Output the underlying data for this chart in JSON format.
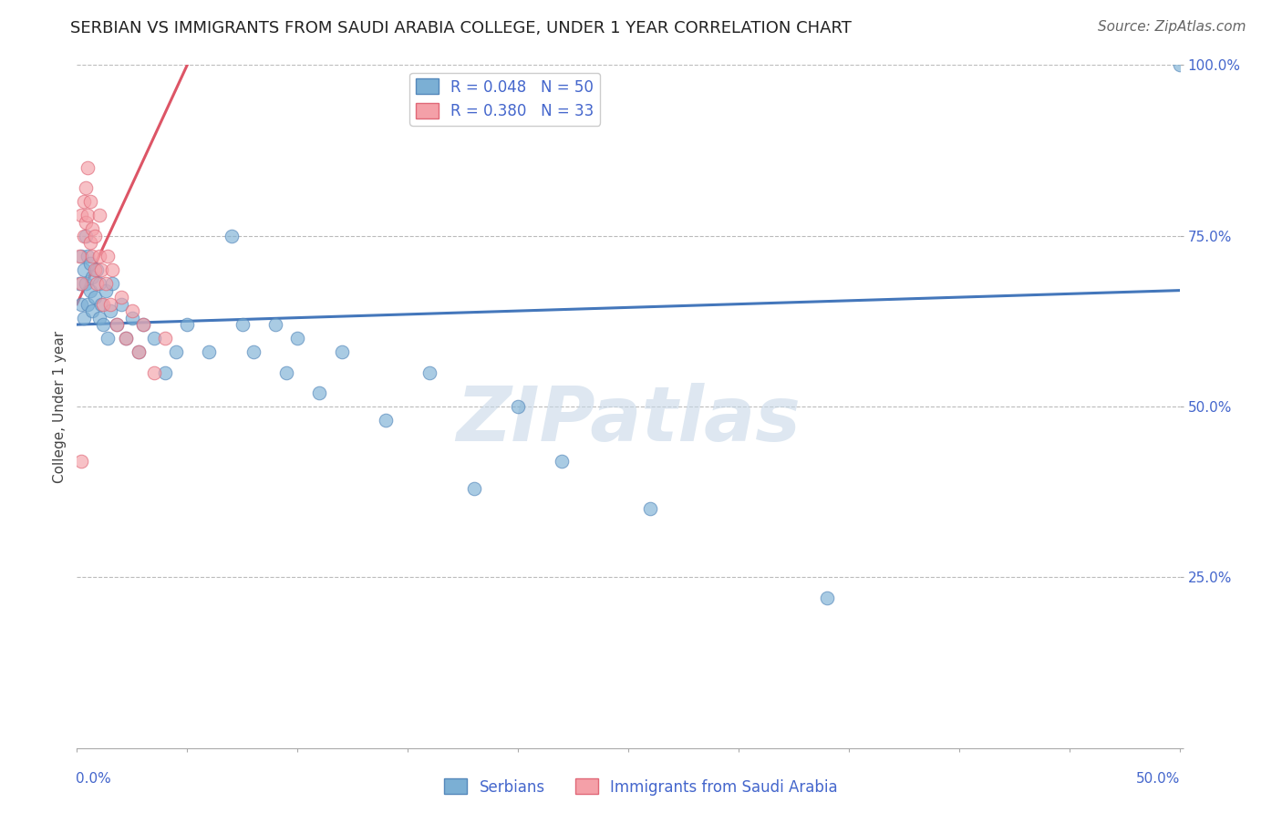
{
  "title": "SERBIAN VS IMMIGRANTS FROM SAUDI ARABIA COLLEGE, UNDER 1 YEAR CORRELATION CHART",
  "source": "Source: ZipAtlas.com",
  "ylabel": "College, Under 1 year",
  "watermark": "ZIPatlas",
  "serbians_x": [
    0.001,
    0.002,
    0.002,
    0.003,
    0.003,
    0.004,
    0.004,
    0.005,
    0.005,
    0.006,
    0.006,
    0.007,
    0.007,
    0.008,
    0.009,
    0.01,
    0.01,
    0.011,
    0.012,
    0.013,
    0.014,
    0.015,
    0.016,
    0.018,
    0.02,
    0.022,
    0.025,
    0.028,
    0.03,
    0.035,
    0.04,
    0.045,
    0.05,
    0.06,
    0.07,
    0.075,
    0.08,
    0.09,
    0.095,
    0.1,
    0.11,
    0.12,
    0.14,
    0.16,
    0.18,
    0.2,
    0.22,
    0.26,
    0.34,
    0.5
  ],
  "serbians_y": [
    0.68,
    0.72,
    0.65,
    0.7,
    0.63,
    0.75,
    0.68,
    0.65,
    0.72,
    0.67,
    0.71,
    0.64,
    0.69,
    0.66,
    0.7,
    0.68,
    0.63,
    0.65,
    0.62,
    0.67,
    0.6,
    0.64,
    0.68,
    0.62,
    0.65,
    0.6,
    0.63,
    0.58,
    0.62,
    0.6,
    0.55,
    0.58,
    0.62,
    0.58,
    0.75,
    0.62,
    0.58,
    0.62,
    0.55,
    0.6,
    0.52,
    0.58,
    0.48,
    0.55,
    0.38,
    0.5,
    0.42,
    0.35,
    0.22,
    1.0
  ],
  "saudi_x": [
    0.001,
    0.002,
    0.002,
    0.003,
    0.003,
    0.004,
    0.004,
    0.005,
    0.005,
    0.006,
    0.006,
    0.007,
    0.007,
    0.008,
    0.008,
    0.009,
    0.01,
    0.01,
    0.011,
    0.012,
    0.013,
    0.014,
    0.015,
    0.016,
    0.018,
    0.02,
    0.022,
    0.025,
    0.028,
    0.03,
    0.035,
    0.04,
    0.002
  ],
  "saudi_y": [
    0.72,
    0.78,
    0.68,
    0.8,
    0.75,
    0.82,
    0.77,
    0.78,
    0.85,
    0.74,
    0.8,
    0.72,
    0.76,
    0.7,
    0.75,
    0.68,
    0.72,
    0.78,
    0.7,
    0.65,
    0.68,
    0.72,
    0.65,
    0.7,
    0.62,
    0.66,
    0.6,
    0.64,
    0.58,
    0.62,
    0.55,
    0.6,
    0.42
  ],
  "R_serbian": 0.048,
  "N_serbian": 50,
  "R_saudi": 0.38,
  "N_saudi": 33,
  "color_serbian": "#7BAFD4",
  "color_saudi": "#F4A0A8",
  "color_edge_serbian": "#5588BB",
  "color_edge_saudi": "#E06878",
  "color_line_serbian": "#4477BB",
  "color_line_saudi": "#DD5566",
  "color_title": "#222222",
  "color_source": "#666666",
  "color_legend_text": "#4466CC",
  "color_ytick": "#4466CC",
  "color_xtick": "#4466CC",
  "color_watermark": "#C8D8E8",
  "color_grid": "#BBBBBB",
  "background_color": "#FFFFFF",
  "xlim": [
    0,
    0.5
  ],
  "ylim": [
    0,
    1.0
  ],
  "title_fontsize": 13,
  "source_fontsize": 11,
  "legend_fontsize": 12,
  "axis_label_fontsize": 11,
  "tick_fontsize": 11,
  "watermark_fontsize": 60
}
